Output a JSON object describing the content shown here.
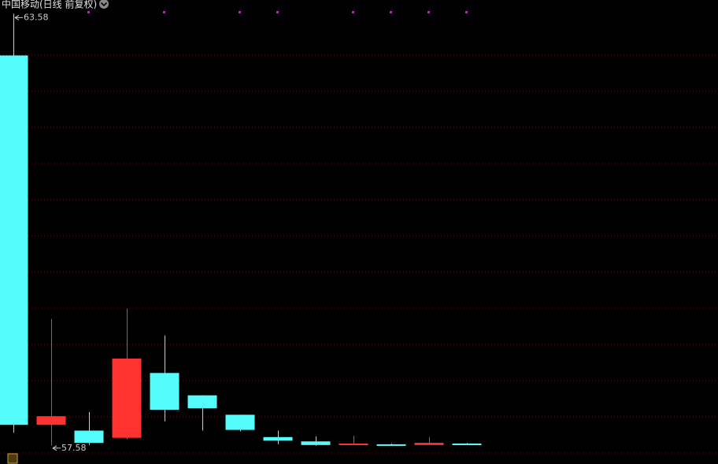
{
  "chart_data": {
    "type": "candlestick",
    "title": "中国移动(日线 前复权)",
    "up_color": "#ff3232",
    "down_color": "#54fcfc",
    "ylim": [
      57.49,
      63.77
    ],
    "candles": [
      {
        "open": 63.0,
        "high": 63.58,
        "low": 57.76,
        "close": 57.87
      },
      {
        "open": 57.87,
        "high": 59.34,
        "low": 57.58,
        "close": 57.99
      },
      {
        "open": 57.79,
        "high": 58.05,
        "low": 57.59,
        "close": 57.62
      },
      {
        "open": 57.69,
        "high": 59.48,
        "low": 57.67,
        "close": 58.79
      },
      {
        "open": 58.59,
        "high": 59.11,
        "low": 57.92,
        "close": 58.08
      },
      {
        "open": 58.28,
        "high": 58.28,
        "low": 57.79,
        "close": 58.1
      },
      {
        "open": 58.01,
        "high": 58.01,
        "low": 57.78,
        "close": 57.8
      },
      {
        "open": 57.7,
        "high": 57.79,
        "low": 57.6,
        "close": 57.65
      },
      {
        "open": 57.64,
        "high": 57.71,
        "low": 57.58,
        "close": 57.59
      },
      {
        "open": 57.59,
        "high": 57.72,
        "low": 57.59,
        "close": 57.61
      },
      {
        "open": 57.6,
        "high": 57.61,
        "low": 57.59,
        "close": 57.59
      },
      {
        "open": 57.59,
        "high": 57.7,
        "low": 57.59,
        "close": 57.62
      },
      {
        "open": 57.61,
        "high": 57.62,
        "low": 57.59,
        "close": 57.59
      }
    ],
    "high_label": {
      "candle": 0,
      "value": 63.58,
      "label": "63.58"
    },
    "low_label": {
      "candle": 1,
      "value": 57.58,
      "label": "57.58"
    }
  }
}
